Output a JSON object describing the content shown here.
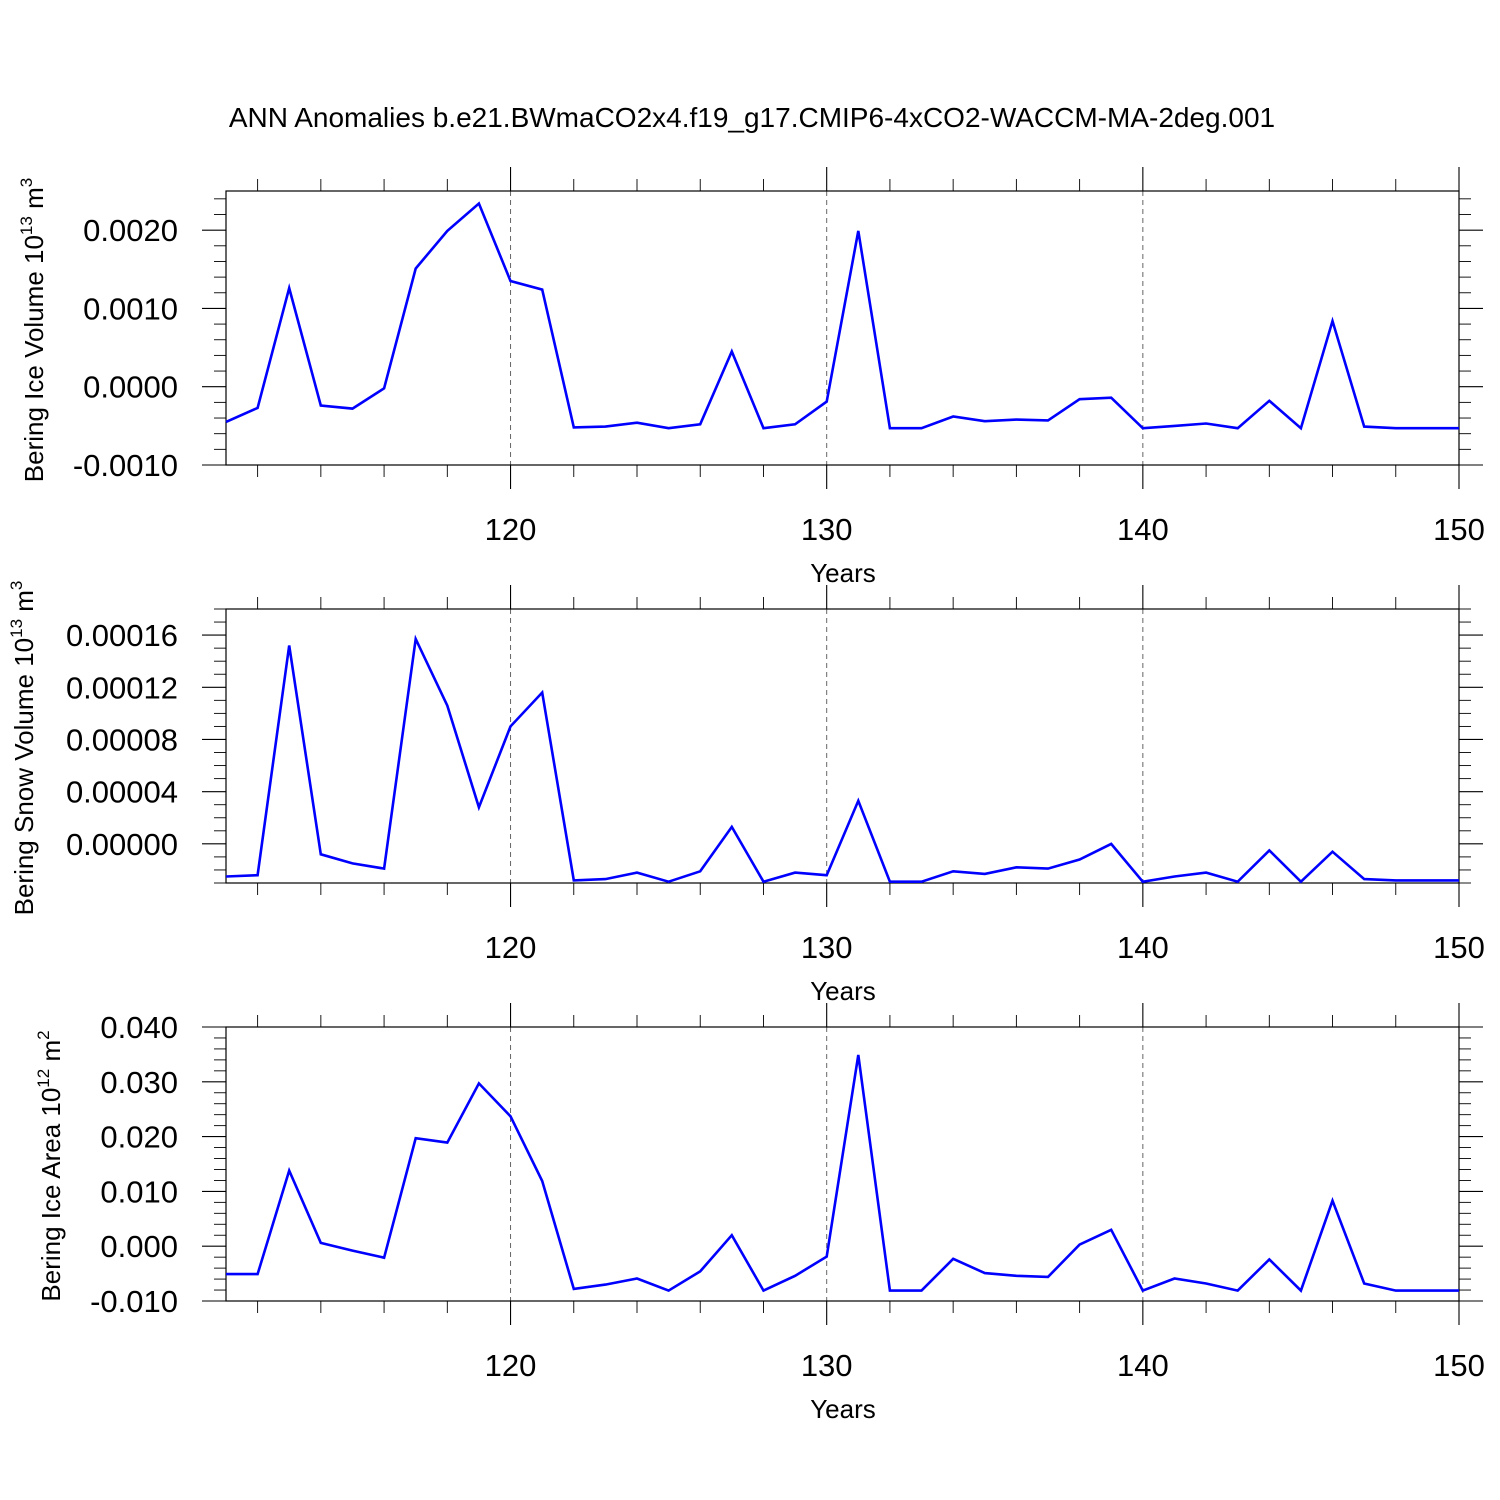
{
  "title": "ANN Anomalies b.e21.BWmaCO2x4.f19_g17.CMIP6-4xCO2-WACCM-MA-2deg.001",
  "chart_data": [
    {
      "type": "line",
      "ylabel": {
        "main": "Bering Ice Volume 10",
        "sup": "13",
        "tail": " m",
        "sup2": "3"
      },
      "xlabel": "Years",
      "xlim": [
        111,
        150
      ],
      "ylim": [
        -0.001,
        0.0025
      ],
      "xticks": [
        120,
        130,
        140,
        150
      ],
      "yticks": [
        -0.001,
        0,
        0.001,
        0.002
      ],
      "ytick_labels": [
        "-0.0010",
        "0.0000",
        "0.0010",
        "0.0020"
      ],
      "ytick_minor": 0.0002,
      "grid_x": [
        120,
        130,
        140
      ],
      "color": "#0000ff",
      "x": [
        111,
        112,
        113,
        114,
        115,
        116,
        117,
        118,
        119,
        120,
        121,
        122,
        123,
        124,
        125,
        126,
        127,
        128,
        129,
        130,
        131,
        132,
        133,
        134,
        135,
        136,
        137,
        138,
        139,
        140,
        141,
        142,
        143,
        144,
        145,
        146,
        147,
        148,
        149,
        150
      ],
      "values": [
        -0.00045,
        -0.00027,
        0.00126,
        -0.00024,
        -0.00028,
        -2e-05,
        0.00151,
        0.00199,
        0.00234,
        0.00135,
        0.00124,
        -0.00052,
        -0.00051,
        -0.00046,
        -0.00053,
        -0.00048,
        0.00045,
        -0.00053,
        -0.00048,
        -0.00019,
        0.00199,
        -0.00053,
        -0.00053,
        -0.00038,
        -0.00044,
        -0.00042,
        -0.00043,
        -0.00016,
        -0.00014,
        -0.00053,
        -0.0005,
        -0.00047,
        -0.00053,
        -0.00018,
        -0.00053,
        0.00084,
        -0.00051,
        -0.00053,
        -0.00053,
        -0.00053
      ]
    },
    {
      "type": "line",
      "ylabel": {
        "main": "Bering Snow Volume 10",
        "sup": "13",
        "tail": " m",
        "sup2": "3"
      },
      "xlabel": "Years",
      "xlim": [
        111,
        150
      ],
      "ylim": [
        -3e-05,
        0.00018
      ],
      "xticks": [
        120,
        130,
        140,
        150
      ],
      "yticks": [
        0,
        4e-05,
        8e-05,
        0.00012,
        0.00016
      ],
      "ytick_labels": [
        "0.00000",
        "0.00004",
        "0.00008",
        "0.00012",
        "0.00016"
      ],
      "ytick_minor": 1e-05,
      "grid_x": [
        120,
        130,
        140
      ],
      "color": "#0000ff",
      "x": [
        111,
        112,
        113,
        114,
        115,
        116,
        117,
        118,
        119,
        120,
        121,
        122,
        123,
        124,
        125,
        126,
        127,
        128,
        129,
        130,
        131,
        132,
        133,
        134,
        135,
        136,
        137,
        138,
        139,
        140,
        141,
        142,
        143,
        144,
        145,
        146,
        147,
        148,
        149,
        150
      ],
      "values": [
        -2.5e-05,
        -2.4e-05,
        0.000152,
        -8e-06,
        -1.5e-05,
        -1.9e-05,
        0.000157,
        0.000106,
        2.8e-05,
        9e-05,
        0.000116,
        -2.8e-05,
        -2.7e-05,
        -2.2e-05,
        -2.9e-05,
        -2.1e-05,
        1.3e-05,
        -2.9e-05,
        -2.2e-05,
        -2.4e-05,
        3.3e-05,
        -2.9e-05,
        -2.9e-05,
        -2.1e-05,
        -2.3e-05,
        -1.8e-05,
        -1.9e-05,
        -1.2e-05,
        0,
        -2.9e-05,
        -2.5e-05,
        -2.2e-05,
        -2.9e-05,
        -5e-06,
        -2.9e-05,
        -6e-06,
        -2.7e-05,
        -2.8e-05,
        -2.8e-05,
        -2.8e-05
      ]
    },
    {
      "type": "line",
      "ylabel": {
        "main": "Bering Ice Area 10",
        "sup": "12",
        "tail": " m",
        "sup2": "2"
      },
      "xlabel": "Years",
      "xlim": [
        111,
        150
      ],
      "ylim": [
        -0.01,
        0.04
      ],
      "xticks": [
        120,
        130,
        140,
        150
      ],
      "yticks": [
        -0.01,
        0,
        0.01,
        0.02,
        0.03,
        0.04
      ],
      "ytick_labels": [
        "-0.010",
        "0.000",
        "0.010",
        "0.020",
        "0.030",
        "0.040"
      ],
      "ytick_minor": 0.002,
      "grid_x": [
        120,
        130,
        140
      ],
      "color": "#0000ff",
      "x": [
        111,
        112,
        113,
        114,
        115,
        116,
        117,
        118,
        119,
        120,
        121,
        122,
        123,
        124,
        125,
        126,
        127,
        128,
        129,
        130,
        131,
        132,
        133,
        134,
        135,
        136,
        137,
        138,
        139,
        140,
        141,
        142,
        143,
        144,
        145,
        146,
        147,
        148,
        149,
        150
      ],
      "values": [
        -0.0051,
        -0.0051,
        0.0138,
        0.0006,
        -0.0008,
        -0.0021,
        0.0197,
        0.0189,
        0.0297,
        0.0237,
        0.0119,
        -0.0078,
        -0.007,
        -0.0059,
        -0.0081,
        -0.0046,
        0.002,
        -0.0081,
        -0.0054,
        -0.0019,
        0.0349,
        -0.0081,
        -0.0081,
        -0.0023,
        -0.0049,
        -0.0054,
        -0.0056,
        0.0003,
        0.003,
        -0.0081,
        -0.0059,
        -0.0068,
        -0.0081,
        -0.0024,
        -0.0081,
        0.0083,
        -0.0068,
        -0.0081,
        -0.0081,
        -0.0081
      ]
    }
  ]
}
